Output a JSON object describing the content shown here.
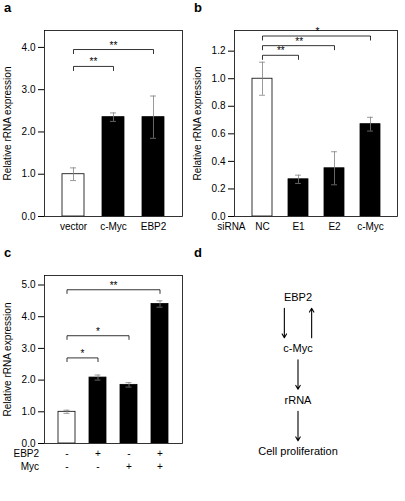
{
  "chart_data": [
    {
      "type": "bar",
      "title": "a",
      "categories": [
        "vector",
        "c-Myc",
        "EBP2"
      ],
      "values": [
        1.0,
        2.35,
        2.35
      ],
      "errors": [
        0.15,
        0.1,
        0.5
      ],
      "colors": [
        "white",
        "black",
        "black"
      ],
      "ylabel": "Relative rRNA expression",
      "ylim": [
        0,
        4.4
      ],
      "yticks": [
        {
          "value": 0.0,
          "label": "0.0"
        },
        {
          "value": 1.0,
          "label": "1.0"
        },
        {
          "value": 2.0,
          "label": "2.0"
        },
        {
          "value": 3.0,
          "label": "3.0"
        },
        {
          "value": 4.0,
          "label": "4.0"
        }
      ],
      "annotations": [
        {
          "x1": 0,
          "x2": 1,
          "y": 3.55,
          "label": "**"
        },
        {
          "x1": 0,
          "x2": 2,
          "y": 3.95,
          "label": "**"
        }
      ]
    },
    {
      "type": "bar",
      "title": "b",
      "categories": [
        "NC",
        "E1",
        "E2",
        "c-Myc"
      ],
      "xlabel": "siRNA",
      "values": [
        1.0,
        0.27,
        0.35,
        0.67
      ],
      "errors": [
        0.12,
        0.03,
        0.12,
        0.05
      ],
      "colors": [
        "white",
        "black",
        "black",
        "black"
      ],
      "ylabel": "Relative rRNA expression",
      "ylim": [
        0,
        1.35
      ],
      "yticks": [
        {
          "value": 0.0,
          "label": "0.0"
        },
        {
          "value": 0.2,
          "label": "0.2"
        },
        {
          "value": 0.4,
          "label": "0.4"
        },
        {
          "value": 0.6,
          "label": "0.6"
        },
        {
          "value": 0.8,
          "label": "0.8"
        },
        {
          "value": 1.0,
          "label": "1.0"
        },
        {
          "value": 1.2,
          "label": "1.2"
        }
      ],
      "annotations": [
        {
          "x1": 0,
          "x2": 1,
          "y": 1.17,
          "label": "**"
        },
        {
          "x1": 0,
          "x2": 2,
          "y": 1.24,
          "label": "**"
        },
        {
          "x1": 0,
          "x2": 3,
          "y": 1.31,
          "label": "*"
        }
      ]
    },
    {
      "type": "bar",
      "title": "c",
      "categories": [
        null,
        null,
        null,
        null
      ],
      "x_rows": [
        {
          "name": "EBP2",
          "labels": [
            "-",
            "+",
            "-",
            "+"
          ]
        },
        {
          "name": "Myc",
          "labels": [
            "-",
            "-",
            "+",
            "+"
          ]
        }
      ],
      "values": [
        1.0,
        2.08,
        1.85,
        4.4
      ],
      "errors": [
        0.05,
        0.08,
        0.07,
        0.1
      ],
      "colors": [
        "white",
        "black",
        "black",
        "black"
      ],
      "ylabel": "Relative rRNA expression",
      "ylim": [
        0,
        5.3
      ],
      "yticks": [
        {
          "value": 0.0,
          "label": "0.0"
        },
        {
          "value": 1.0,
          "label": "1.0"
        },
        {
          "value": 2.0,
          "label": "2.0"
        },
        {
          "value": 3.0,
          "label": "3.0"
        },
        {
          "value": 4.0,
          "label": "4.0"
        },
        {
          "value": 5.0,
          "label": "5.0"
        }
      ],
      "annotations": [
        {
          "x1": 0,
          "x2": 1,
          "y": 2.7,
          "label": "*"
        },
        {
          "x1": 0,
          "x2": 2,
          "y": 3.4,
          "label": "*"
        },
        {
          "x1": 0,
          "x2": 3,
          "y": 4.85,
          "label": "**"
        }
      ]
    },
    {
      "type": "diagram",
      "title": "d",
      "nodes": [
        "EBP2",
        "c-Myc",
        "rRNA",
        "Cell proliferation"
      ],
      "edges": [
        {
          "from": "EBP2",
          "to": "c-Myc"
        },
        {
          "from": "c-Myc",
          "to": "EBP2"
        },
        {
          "from": "c-Myc",
          "to": "rRNA"
        },
        {
          "from": "rRNA",
          "to": "Cell proliferation"
        }
      ]
    }
  ]
}
